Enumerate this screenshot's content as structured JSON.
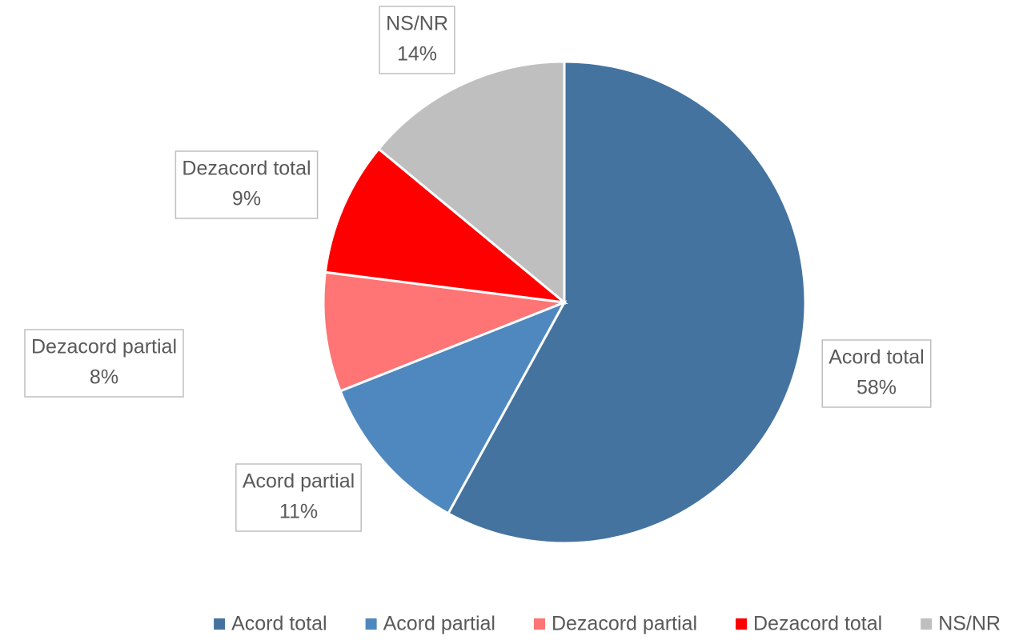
{
  "chart_data": {
    "type": "pie",
    "categories": [
      "Acord total",
      "Acord partial",
      "Dezacord partial",
      "Dezacord total",
      "NS/NR"
    ],
    "values": [
      58,
      11,
      8,
      9,
      14
    ],
    "value_labels": [
      "58%",
      "11%",
      "8%",
      "9%",
      "14%"
    ],
    "colors": [
      "#44739f",
      "#4f88bf",
      "#ff7474",
      "#ff0000",
      "#bfbfbf"
    ],
    "legend": "bottom"
  }
}
